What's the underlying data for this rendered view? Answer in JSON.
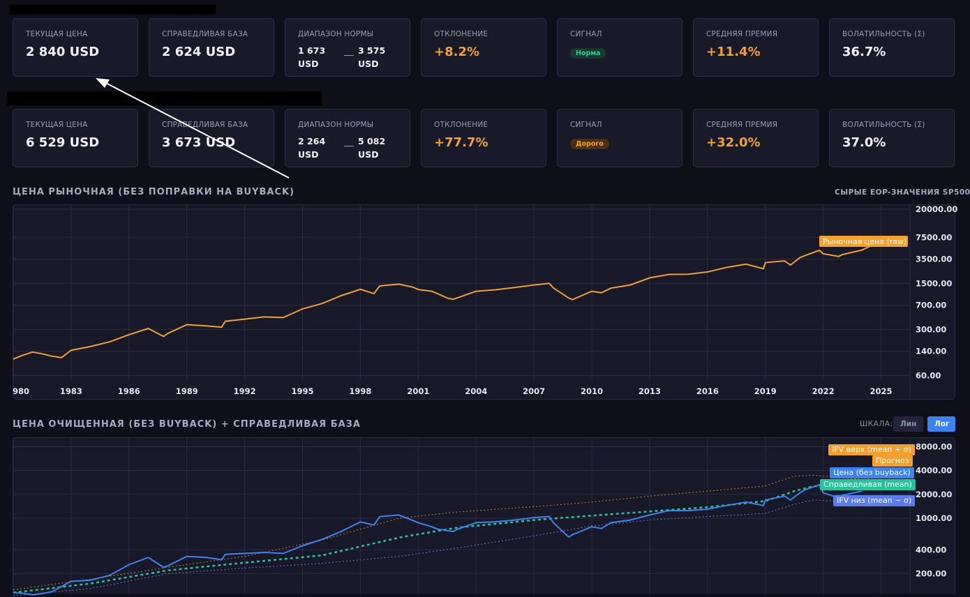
{
  "cards_row1": [
    {
      "label": "ТЕКУЩАЯ ЦЕНА",
      "value": "2 840 USD"
    },
    {
      "label": "СПРАВЕДЛИВАЯ БАЗА",
      "value": "2 624 USD"
    },
    {
      "label": "ДИАПАЗОН НОРМЫ",
      "low": "1 673\nUSD",
      "high": "3 575\nUSD"
    },
    {
      "label": "ОТКЛОНЕНИЕ",
      "value": "+8.2%"
    },
    {
      "label": "СИГНАЛ",
      "badge": "Норма"
    },
    {
      "label": "СРЕДНЯЯ ПРЕМИЯ",
      "value": "+11.4%"
    },
    {
      "label": "ВОЛАТИЛЬНОСТЬ (Σ)",
      "value": "36.7%"
    }
  ],
  "cards_row2": [
    {
      "label": "ТЕКУЩАЯ ЦЕНА",
      "value": "6 529 USD"
    },
    {
      "label": "СПРАВЕДЛИВАЯ БАЗА",
      "value": "3 673 USD"
    },
    {
      "label": "ДИАПАЗОН НОРМЫ",
      "low": "2 264\nUSD",
      "high": "5 082\nUSD"
    },
    {
      "label": "ОТКЛОНЕНИЕ",
      "value": "+77.7%"
    },
    {
      "label": "СИГНАЛ",
      "badge": "Дорого"
    },
    {
      "label": "СРЕДНЯЯ ПРЕМИЯ",
      "value": "+32.0%"
    },
    {
      "label": "ВОЛАТИЛЬНОСТЬ (Σ)",
      "value": "37.0%"
    }
  ],
  "section1": {
    "title": "ЦЕНА РЫНОЧНАЯ (БЕЗ ПОПРАВКИ НА BUYBACK)",
    "right_label": "СЫРЫЕ EOP-ЗНАЧЕНИЯ SP500"
  },
  "section2": {
    "title": "ЦЕНА ОЧИЩЕННАЯ (БЕЗ BUYBACK) + СПРАВЕДЛИВАЯ БАЗА",
    "scale_label": "ШКАЛА:",
    "btn_lin": "Лин",
    "btn_log": "Лог"
  },
  "colors": {
    "orange": "#f5a02a",
    "blue": "#3b82f6",
    "green": "#22c59a",
    "purple": "#8b8ff0",
    "green_badge": "#2ecc8f"
  },
  "chart_data": [
    {
      "type": "line",
      "scale": "log",
      "ylim": [
        55,
        20000
      ],
      "xlim": [
        1980,
        2026.5
      ],
      "x_ticks": [
        "980",
        "1983",
        "1986",
        "1989",
        "1992",
        "1995",
        "1998",
        "2001",
        "2004",
        "2007",
        "2010",
        "2013",
        "2016",
        "2019",
        "2022",
        "2025"
      ],
      "y_ticks": [
        "20000.00",
        "7500.00",
        "3500.00",
        "1500.00",
        "700.00",
        "300.00",
        "140.00",
        "60.00"
      ],
      "series": [
        {
          "name": "Рыночная цена (raw)",
          "color": "#f5a02a",
          "x": [
            1980,
            1980.5,
            1981,
            1981.5,
            1982,
            1982.5,
            1983,
            1984,
            1985,
            1986,
            1987,
            1987.8,
            1988,
            1989,
            1990,
            1990.8,
            1991,
            1992,
            1993,
            1994,
            1995,
            1996,
            1997,
            1998,
            1998.7,
            1999,
            2000,
            2000.7,
            2001,
            2001.7,
            2002,
            2002.5,
            2002.8,
            2003,
            2004,
            2005,
            2006,
            2007,
            2007.8,
            2008,
            2008.8,
            2009,
            2010,
            2010.5,
            2011,
            2012,
            2013,
            2014,
            2015,
            2016,
            2017,
            2018,
            2018.9,
            2019,
            2020,
            2020.3,
            2020.8,
            2021,
            2021.8,
            2022,
            2022.8,
            2023,
            2024,
            2024.5
          ],
          "values": [
            107,
            122,
            136,
            128,
            118,
            112,
            145,
            165,
            195,
            250,
            310,
            235,
            260,
            355,
            340,
            325,
            400,
            430,
            465,
            455,
            615,
            740,
            975,
            1220,
            1050,
            1370,
            1460,
            1320,
            1210,
            1140,
            1050,
            900,
            860,
            900,
            1140,
            1200,
            1300,
            1420,
            1500,
            1280,
            900,
            850,
            1140,
            1080,
            1270,
            1420,
            1820,
            2050,
            2060,
            2240,
            2630,
            2930,
            2500,
            3100,
            3300,
            2850,
            3700,
            3900,
            4760,
            4230,
            3840,
            4100,
            4800,
            5600
          ]
        }
      ]
    },
    {
      "type": "line",
      "scale": "log",
      "ylim": [
        110,
        9500
      ],
      "xlim": [
        1980,
        2026.5
      ],
      "y_ticks": [
        "8000.00",
        "4000.00",
        "2000.00",
        "1000.00",
        "400.00",
        "200.00"
      ],
      "series": [
        {
          "name": "IFV верх (mean + σ)",
          "color": "#f5a02a",
          "x": [
            1980,
            1984,
            1988,
            1992,
            1996,
            2000,
            2003,
            2007,
            2010,
            2013,
            2016,
            2019,
            2020.5,
            2021.5,
            2022.5,
            2024,
            2025
          ],
          "values": [
            125,
            170,
            240,
            330,
            530,
            1000,
            1200,
            1400,
            1600,
            1900,
            2200,
            2550,
            3400,
            3500,
            3300,
            3100,
            3100
          ]
        },
        {
          "name": "Цена (без buyback)",
          "color": "#3b82f6",
          "x": [
            1980,
            1980.5,
            1981,
            1981.5,
            1982,
            1983,
            1984,
            1985,
            1986,
            1987,
            1987.8,
            1988,
            1989,
            1990,
            1990.8,
            1991,
            1992,
            1993,
            1994,
            1995,
            1996,
            1997,
            1998,
            1998.7,
            1999,
            2000,
            2000.7,
            2001,
            2001.7,
            2002,
            2002.8,
            2003,
            2004,
            2005,
            2006,
            2007,
            2007.8,
            2008,
            2008.8,
            2009,
            2010,
            2010.5,
            2011,
            2012,
            2013,
            2014,
            2015,
            2016,
            2017,
            2018,
            2018.9,
            2019,
            2020,
            2020.3,
            2020.8,
            2021,
            2021.8,
            2022,
            2022.8,
            2023,
            2024
          ],
          "values": [
            115,
            113,
            108,
            112,
            118,
            160,
            165,
            190,
            260,
            320,
            240,
            250,
            330,
            320,
            300,
            350,
            360,
            370,
            360,
            450,
            540,
            680,
            900,
            820,
            1050,
            1100,
            940,
            880,
            780,
            730,
            680,
            720,
            880,
            900,
            950,
            1020,
            1050,
            880,
            580,
            620,
            780,
            740,
            880,
            950,
            1100,
            1250,
            1250,
            1300,
            1450,
            1600,
            1450,
            1700,
            1900,
            1700,
            2100,
            2250,
            2650,
            2100,
            1800,
            1950,
            2200
          ]
        },
        {
          "name": "Справедливая (mean)",
          "color": "#22c59a",
          "x": [
            1980,
            1984,
            1988,
            1992,
            1996,
            2000,
            2003,
            2007,
            2010,
            2013,
            2016,
            2019,
            2020.5,
            2021.5,
            2022.5,
            2024,
            2025
          ],
          "values": [
            115,
            150,
            220,
            275,
            340,
            570,
            760,
            950,
            1080,
            1220,
            1380,
            1650,
            2200,
            2550,
            2500,
            2450,
            2450
          ]
        },
        {
          "name": "IFV низ (mean − σ)",
          "color": "#8b8ff0",
          "x": [
            1980,
            1984,
            1988,
            1992,
            1996,
            2000,
            2003,
            2007,
            2010,
            2013,
            2016,
            2019,
            2020.5,
            2021.5,
            2022.5,
            2024,
            2025
          ],
          "values": [
            105,
            130,
            200,
            235,
            270,
            330,
            420,
            600,
            800,
            950,
            1050,
            1150,
            1500,
            1700,
            1650,
            1650,
            1650
          ]
        }
      ]
    }
  ],
  "chart2_tags": [
    "IFV верх (mean + σ)",
    "Прогноз",
    "Цена (без buyback)",
    "Справедливая (mean)",
    "IFV низ (mean − σ)"
  ]
}
